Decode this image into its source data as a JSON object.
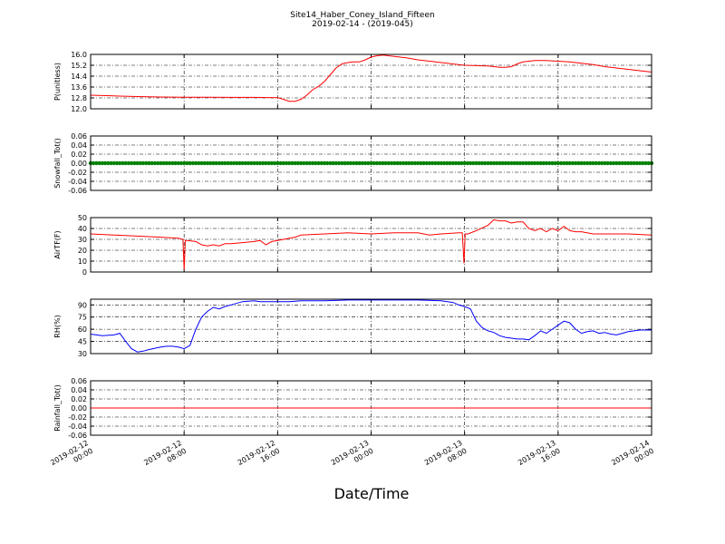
{
  "header": {
    "title": "Site14_Haber_Coney_Island_Fifteen",
    "subtitle": "2019-02-14 - (2019-045)"
  },
  "xaxis": {
    "label": "Date/Time",
    "ticks": [
      {
        "l1": "2019-02-12",
        "l2": "00:00",
        "h": 0
      },
      {
        "l1": "2019-02-12",
        "l2": "08:00",
        "h": 8
      },
      {
        "l1": "2019-02-12",
        "l2": "16:00",
        "h": 16
      },
      {
        "l1": "2019-02-13",
        "l2": "00:00",
        "h": 24
      },
      {
        "l1": "2019-02-13",
        "l2": "08:00",
        "h": 32
      },
      {
        "l1": "2019-02-13",
        "l2": "16:00",
        "h": 40
      },
      {
        "l1": "2019-02-14",
        "l2": "00:00",
        "h": 48
      }
    ],
    "range_hours": [
      0,
      48
    ]
  },
  "chart_data": [
    {
      "type": "line",
      "ylabel": "P(unitless)",
      "ylim": [
        12.0,
        16.0
      ],
      "yticks": [
        "12.0",
        "12.8",
        "13.6",
        "14.4",
        "15.2",
        "16.0"
      ],
      "grid": true,
      "color": "#ff0000",
      "series": [
        {
          "x": [
            0,
            2,
            4,
            6,
            8,
            10,
            12,
            14,
            16,
            16.5,
            17,
            17.5,
            18,
            18.5,
            19,
            19.5,
            20,
            20.5,
            21,
            21.5,
            22,
            22.5,
            23,
            23.5,
            24,
            24.5,
            25,
            25.5,
            26,
            26.5,
            27,
            28,
            30,
            32,
            34,
            34.5,
            35,
            35.5,
            36,
            36.5,
            37,
            38,
            39,
            40,
            41,
            42,
            43,
            44,
            45,
            46,
            47,
            48
          ],
          "y": [
            13.0,
            12.95,
            12.9,
            12.87,
            12.85,
            12.85,
            12.84,
            12.84,
            12.82,
            12.7,
            12.55,
            12.55,
            12.7,
            13.0,
            13.4,
            13.65,
            14.0,
            14.5,
            15.0,
            15.3,
            15.4,
            15.45,
            15.45,
            15.6,
            15.8,
            15.9,
            15.95,
            15.9,
            15.85,
            15.8,
            15.75,
            15.6,
            15.4,
            15.2,
            15.15,
            15.1,
            15.05,
            15.05,
            15.1,
            15.3,
            15.45,
            15.55,
            15.55,
            15.5,
            15.45,
            15.35,
            15.25,
            15.1,
            15.0,
            14.9,
            14.8,
            14.7
          ]
        }
      ]
    },
    {
      "type": "line",
      "ylabel": "Snowfall_Tot()",
      "ylim": [
        -0.06,
        0.06
      ],
      "yticks": [
        "-0.06",
        "-0.04",
        "-0.02",
        "0.00",
        "0.02",
        "0.04",
        "0.06"
      ],
      "grid": true,
      "color": "#008000",
      "markers": true,
      "series": [
        {
          "x": [
            0,
            48
          ],
          "y": [
            0,
            0
          ]
        }
      ]
    },
    {
      "type": "line",
      "ylabel": "AirTF(F)",
      "ylim": [
        0,
        50
      ],
      "yticks": [
        "0",
        "10",
        "20",
        "30",
        "40",
        "50"
      ],
      "grid": true,
      "color": "#ff0000",
      "series": [
        {
          "x": [
            0,
            2,
            4,
            6,
            7.5,
            7.9,
            8.0,
            8.1,
            8.3,
            9,
            9.5,
            10,
            10.5,
            11,
            11.5,
            12,
            13,
            14,
            14.5,
            15,
            15.5,
            16,
            16.5,
            17,
            17.5,
            18,
            20,
            22,
            24,
            26,
            28,
            29,
            30,
            31.5,
            31.8,
            31.95,
            32.05,
            32.3,
            33,
            34,
            34.5,
            35,
            35.5,
            36,
            36.5,
            37,
            37.5,
            38,
            38.5,
            39,
            39.5,
            40,
            40.5,
            41,
            41.5,
            42,
            43,
            44,
            46,
            48
          ],
          "y": [
            35,
            34,
            33,
            32,
            31,
            30,
            2,
            29,
            29,
            28,
            25,
            24,
            25,
            24,
            26,
            26,
            27,
            28,
            29,
            25,
            28,
            29,
            30,
            31,
            32,
            34,
            35,
            36,
            35,
            36,
            36,
            34,
            35,
            36,
            36,
            8,
            35,
            35,
            38,
            43,
            48,
            47,
            47,
            45,
            46,
            46,
            40,
            38,
            40,
            37,
            40,
            38,
            42,
            38,
            37,
            37,
            35,
            35,
            35,
            34
          ]
        }
      ]
    },
    {
      "type": "line",
      "ylabel": "RH(%)",
      "ylim": [
        30,
        97
      ],
      "yticks": [
        "30",
        "45",
        "60",
        "75",
        "90"
      ],
      "grid": true,
      "color": "#0000ff",
      "series": [
        {
          "x": [
            0,
            1,
            2,
            2.5,
            3,
            3.5,
            4,
            4.5,
            5,
            6,
            6.5,
            7,
            7.5,
            8,
            8.5,
            9,
            9.5,
            10,
            10.5,
            11,
            11.5,
            12,
            13,
            14,
            14.5,
            15,
            16,
            17,
            18,
            20,
            22,
            24,
            26,
            28,
            30,
            31,
            31.5,
            32,
            32.5,
            33,
            33.5,
            34,
            34.5,
            35,
            35.5,
            36,
            36.5,
            37,
            37.5,
            38,
            38.5,
            39,
            39.5,
            40,
            40.5,
            41,
            41.5,
            42,
            42.5,
            43,
            43.5,
            44,
            44.5,
            45,
            45.5,
            46,
            46.5,
            47,
            48
          ],
          "y": [
            54,
            52,
            53,
            55,
            45,
            36,
            32,
            33,
            35,
            38,
            39,
            39,
            38,
            36,
            40,
            60,
            75,
            82,
            87,
            85,
            88,
            90,
            94,
            95,
            94,
            94,
            94,
            94,
            95,
            95,
            96,
            96,
            96,
            96,
            95,
            93,
            90,
            88,
            85,
            70,
            62,
            58,
            56,
            52,
            50,
            49,
            48,
            48,
            47,
            52,
            58,
            55,
            60,
            65,
            70,
            68,
            60,
            55,
            57,
            58,
            55,
            56,
            54,
            53,
            55,
            57,
            58,
            59,
            59
          ]
        }
      ]
    },
    {
      "type": "line",
      "ylabel": "Rainfall_Tot()",
      "ylim": [
        -0.06,
        0.06
      ],
      "yticks": [
        "-0.06",
        "-0.04",
        "-0.02",
        "0.00",
        "0.02",
        "0.04",
        "0.06"
      ],
      "grid": true,
      "color": "#ff0000",
      "series": [
        {
          "x": [
            0,
            48
          ],
          "y": [
            0,
            0
          ]
        }
      ]
    }
  ]
}
